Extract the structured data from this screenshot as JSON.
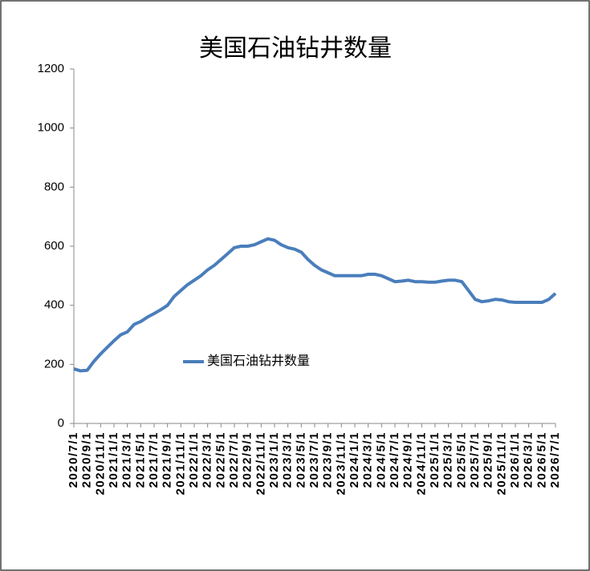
{
  "chart_data": {
    "type": "line",
    "title": "美国石油钻井数量",
    "x": [
      "2020/7/1",
      "2020/8/1",
      "2020/9/1",
      "2020/10/1",
      "2020/11/1",
      "2020/12/1",
      "2021/1/1",
      "2021/2/1",
      "2021/3/1",
      "2021/4/1",
      "2021/5/1",
      "2021/6/1",
      "2021/7/1",
      "2021/8/1",
      "2021/9/1",
      "2021/10/1",
      "2021/11/1",
      "2021/12/1",
      "2022/1/1",
      "2022/2/1",
      "2022/3/1",
      "2022/4/1",
      "2022/5/1",
      "2022/6/1",
      "2022/7/1",
      "2022/8/1",
      "2022/9/1",
      "2022/10/1",
      "2022/11/1",
      "2022/12/1",
      "2023/1/1",
      "2023/2/1",
      "2023/3/1",
      "2023/4/1",
      "2023/5/1",
      "2023/6/1",
      "2023/7/1",
      "2023/8/1",
      "2023/9/1",
      "2023/10/1",
      "2023/11/1",
      "2023/12/1",
      "2024/1/1",
      "2024/2/1",
      "2024/3/1",
      "2024/4/1",
      "2024/5/1",
      "2024/6/1",
      "2024/7/1",
      "2024/8/1",
      "2024/9/1",
      "2024/10/1",
      "2024/11/1",
      "2024/12/1",
      "2025/1/1",
      "2025/2/1",
      "2025/3/1",
      "2025/4/1",
      "2025/5/1",
      "2025/6/1",
      "2025/7/1",
      "2025/8/1",
      "2025/9/1",
      "2025/10/1",
      "2025/11/1",
      "2025/12/1",
      "2026/1/1",
      "2026/2/1",
      "2026/3/1",
      "2026/4/1",
      "2026/5/1",
      "2026/6/1",
      "2026/7/1"
    ],
    "series": [
      {
        "name": "美国石油钻井数量",
        "color": "#4a7ebb",
        "values": [
          185,
          178,
          180,
          210,
          235,
          258,
          280,
          300,
          310,
          335,
          345,
          360,
          372,
          385,
          400,
          430,
          450,
          470,
          485,
          500,
          520,
          535,
          555,
          575,
          595,
          600,
          600,
          605,
          615,
          625,
          620,
          605,
          595,
          590,
          580,
          555,
          535,
          520,
          510,
          500,
          500,
          500,
          500,
          500,
          505,
          505,
          500,
          490,
          480,
          482,
          485,
          480,
          480,
          478,
          478,
          482,
          485,
          485,
          480,
          450,
          420,
          412,
          415,
          420,
          418,
          412,
          410,
          410,
          410,
          410,
          410,
          420,
          440
        ]
      }
    ],
    "xticks": [
      "2020/7/1",
      "2020/9/1",
      "2020/11/1",
      "2021/1/1",
      "2021/3/1",
      "2021/5/1",
      "2021/7/1",
      "2021/9/1",
      "2021/11/1",
      "2022/1/1",
      "2022/3/1",
      "2022/5/1",
      "2022/7/1",
      "2022/9/1",
      "2022/11/1",
      "2023/1/1",
      "2023/3/1",
      "2023/5/1",
      "2023/7/1",
      "2023/9/1",
      "2023/11/1",
      "2024/1/1",
      "2024/3/1",
      "2024/5/1",
      "2024/7/1",
      "2024/9/1",
      "2024/11/1",
      "2025/1/1",
      "2025/3/1",
      "2025/5/1",
      "2025/7/1",
      "2025/9/1",
      "2025/11/1",
      "2026/1/1",
      "2026/3/1",
      "2026/5/1",
      "2026/7/1"
    ],
    "ylim": [
      0,
      1200
    ],
    "yticks": [
      0,
      200,
      400,
      600,
      800,
      1000,
      1200
    ],
    "grid": false,
    "legend": "center-left"
  }
}
